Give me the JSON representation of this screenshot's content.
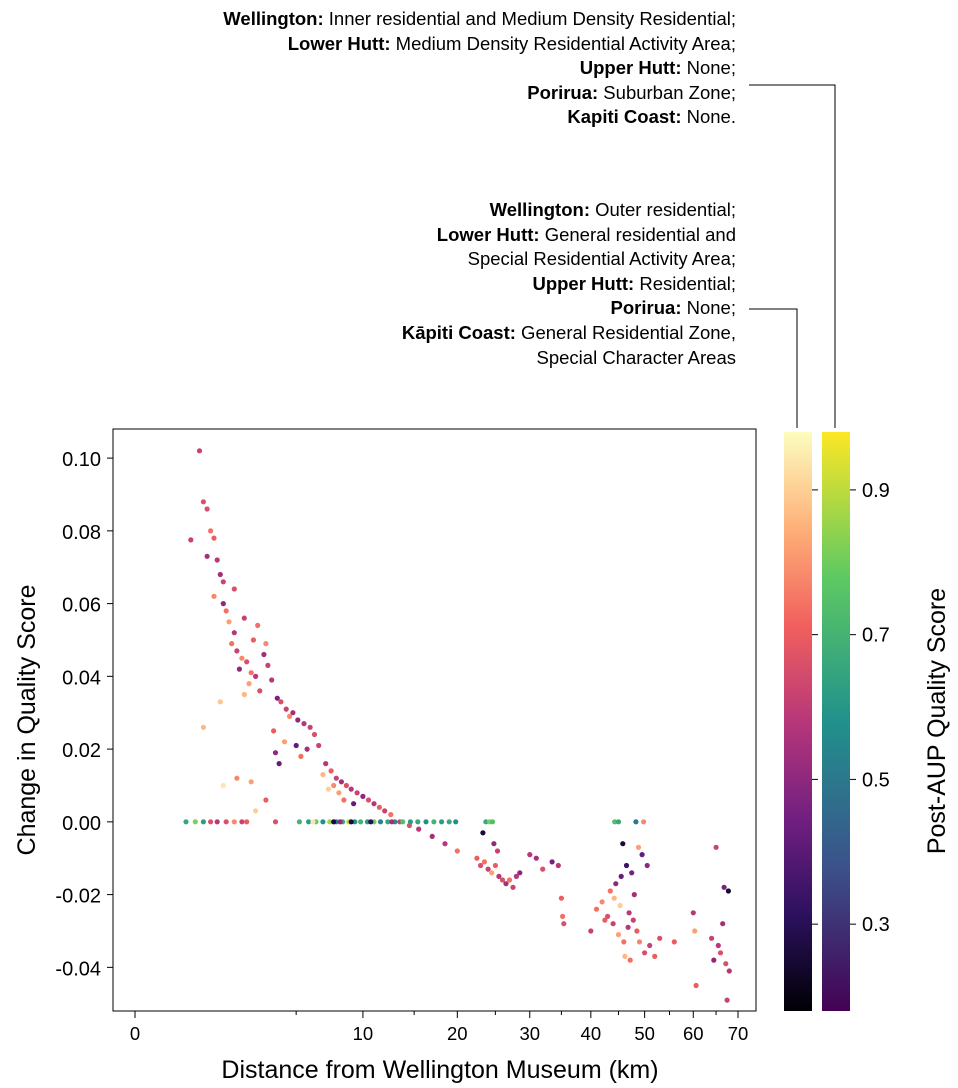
{
  "annotations": [
    {
      "lines": [
        {
          "bold": "Wellington:",
          "text": " Inner residential and Medium Density Residential;"
        },
        {
          "bold": "Lower Hutt:",
          "text": " Medium Density Residential Activity Area;"
        },
        {
          "bold": "Upper Hutt:",
          "text": " None;"
        },
        {
          "bold": "Porirua:",
          "text": " Suburban Zone;"
        },
        {
          "bold": "Kapiti Coast:",
          "text": " None."
        }
      ]
    },
    {
      "lines": [
        {
          "bold": "Wellington:",
          "text": " Outer residential;"
        },
        {
          "bold": "Lower Hutt:",
          "text": " General residential and"
        },
        {
          "bold": "",
          "text": "Special Residential Activity Area;"
        },
        {
          "bold": "Upper Hutt:",
          "text": " Residential;"
        },
        {
          "bold": "Porirua:",
          "text": " None;"
        },
        {
          "bold": "Kāpiti Coast:",
          "text": " General Residential Zone,"
        },
        {
          "bold": "",
          "text": "Special Character Areas"
        }
      ]
    }
  ],
  "chart_data": {
    "type": "scatter",
    "xlabel": "Distance from Wellington Museum (km)",
    "ylabel": "Change in Quality Score",
    "colorbar_label": "Post-AUP Quality Score",
    "x_scale": "sqrt",
    "xlim": [
      0,
      70
    ],
    "ylim": [
      -0.052,
      0.108
    ],
    "x_ticks": [
      0,
      10,
      20,
      30,
      40,
      50,
      60,
      70
    ],
    "x_minor_ticks": [
      5,
      15,
      25,
      35,
      45,
      55,
      65
    ],
    "y_ticks": [
      0.1,
      0.08,
      0.06,
      0.04,
      0.02,
      0.0,
      -0.02,
      -0.04
    ],
    "y_tick_labels": [
      "0.10",
      "0.08",
      "0.06",
      "0.04",
      "0.02",
      "0.00",
      "-0.02",
      "-0.04"
    ],
    "colorbar_range": [
      0.18,
      0.98
    ],
    "colorbar_ticks": [
      0.3,
      0.5,
      0.7,
      0.9
    ],
    "colormaps": [
      {
        "name": "magma",
        "stops": [
          "#000004",
          "#2c115f",
          "#721f81",
          "#b73779",
          "#f1605d",
          "#feb078",
          "#fcfdbf"
        ]
      },
      {
        "name": "viridis",
        "stops": [
          "#440154",
          "#3b528b",
          "#21918c",
          "#5ec962",
          "#fde725"
        ]
      }
    ],
    "points": [
      [
        0.6,
        0.0775,
        0.55,
        "magma"
      ],
      [
        0.8,
        0.102,
        0.55,
        "magma"
      ],
      [
        0.9,
        0.088,
        0.6,
        "magma"
      ],
      [
        1.0,
        0.086,
        0.6,
        "magma"
      ],
      [
        1.1,
        0.08,
        0.7,
        "magma"
      ],
      [
        1.2,
        0.078,
        0.65,
        "magma"
      ],
      [
        1.0,
        0.073,
        0.45,
        "magma"
      ],
      [
        1.3,
        0.072,
        0.5,
        "magma"
      ],
      [
        1.4,
        0.068,
        0.45,
        "magma"
      ],
      [
        1.5,
        0.066,
        0.55,
        "magma"
      ],
      [
        1.2,
        0.062,
        0.75,
        "magma"
      ],
      [
        1.6,
        0.058,
        0.7,
        "magma"
      ],
      [
        1.7,
        0.055,
        0.8,
        "magma"
      ],
      [
        1.9,
        0.052,
        0.5,
        "magma"
      ],
      [
        1.8,
        0.049,
        0.7,
        "magma"
      ],
      [
        2.0,
        0.047,
        0.55,
        "magma"
      ],
      [
        2.2,
        0.045,
        0.75,
        "magma"
      ],
      [
        2.4,
        0.044,
        0.6,
        "magma"
      ],
      [
        2.1,
        0.042,
        0.4,
        "magma"
      ],
      [
        2.6,
        0.041,
        0.7,
        "magma"
      ],
      [
        2.8,
        0.04,
        0.5,
        "magma"
      ],
      [
        2.5,
        0.038,
        0.8,
        "magma"
      ],
      [
        3.0,
        0.036,
        0.6,
        "magma"
      ],
      [
        2.3,
        0.035,
        0.85,
        "magma"
      ],
      [
        2.7,
        0.05,
        0.65,
        "magma"
      ],
      [
        3.2,
        0.046,
        0.45,
        "magma"
      ],
      [
        3.4,
        0.043,
        0.55,
        "magma"
      ],
      [
        1.5,
        0.06,
        0.4,
        "magma"
      ],
      [
        1.9,
        0.064,
        0.6,
        "magma"
      ],
      [
        2.3,
        0.056,
        0.55,
        "magma"
      ],
      [
        2.9,
        0.054,
        0.7,
        "magma"
      ],
      [
        3.3,
        0.049,
        0.75,
        "magma"
      ],
      [
        3.6,
        0.039,
        0.5,
        "magma"
      ],
      [
        3.9,
        0.034,
        0.35,
        "magma"
      ],
      [
        4.1,
        0.033,
        0.6,
        "magma"
      ],
      [
        4.4,
        0.031,
        0.55,
        "magma"
      ],
      [
        4.8,
        0.03,
        0.45,
        "magma"
      ],
      [
        5.1,
        0.028,
        0.4,
        "magma"
      ],
      [
        5.5,
        0.027,
        0.5,
        "magma"
      ],
      [
        5.9,
        0.026,
        0.55,
        "magma"
      ],
      [
        6.2,
        0.024,
        0.6,
        "magma"
      ],
      [
        4.6,
        0.029,
        0.75,
        "magma"
      ],
      [
        3.7,
        0.025,
        0.65,
        "magma"
      ],
      [
        4.3,
        0.022,
        0.8,
        "magma"
      ],
      [
        3.8,
        0.019,
        0.4,
        "magma"
      ],
      [
        4.0,
        0.016,
        0.3,
        "magma"
      ],
      [
        5.0,
        0.021,
        0.3,
        "magma"
      ],
      [
        5.3,
        0.018,
        0.7,
        "magma"
      ],
      [
        5.7,
        0.02,
        0.45,
        "magma"
      ],
      [
        6.5,
        0.021,
        0.55,
        "magma"
      ],
      [
        2.0,
        0.012,
        0.75,
        "magma"
      ],
      [
        2.6,
        0.011,
        0.8,
        "magma"
      ],
      [
        1.5,
        0.01,
        0.95,
        "magma"
      ],
      [
        3.3,
        0.006,
        0.65,
        "magma"
      ],
      [
        2.8,
        0.003,
        0.9,
        "magma"
      ],
      [
        1.4,
        0.033,
        0.88,
        "magma"
      ],
      [
        0.9,
        0.026,
        0.85,
        "magma"
      ],
      [
        7.0,
        0.016,
        0.5,
        "magma"
      ],
      [
        7.4,
        0.014,
        0.65,
        "magma"
      ],
      [
        7.8,
        0.012,
        0.55,
        "magma"
      ],
      [
        8.2,
        0.011,
        0.45,
        "magma"
      ],
      [
        8.6,
        0.01,
        0.6,
        "magma"
      ],
      [
        9.0,
        0.009,
        0.5,
        "magma"
      ],
      [
        9.5,
        0.008,
        0.55,
        "magma"
      ],
      [
        10.0,
        0.007,
        0.4,
        "magma"
      ],
      [
        10.5,
        0.006,
        0.6,
        "magma"
      ],
      [
        11.0,
        0.005,
        0.5,
        "magma"
      ],
      [
        11.5,
        0.004,
        0.65,
        "magma"
      ],
      [
        12.0,
        0.003,
        0.55,
        "magma"
      ],
      [
        12.6,
        0.002,
        0.7,
        "magma"
      ],
      [
        7.6,
        0.01,
        0.75,
        "magma"
      ],
      [
        8.0,
        0.008,
        0.8,
        "magma"
      ],
      [
        8.4,
        0.006,
        0.7,
        "magma"
      ],
      [
        9.2,
        0.005,
        0.3,
        "magma"
      ],
      [
        6.8,
        0.013,
        0.85,
        "magma"
      ],
      [
        7.2,
        0.009,
        0.9,
        "magma"
      ],
      [
        13.5,
        0.0,
        0.55,
        "magma"
      ],
      [
        14.5,
        -0.001,
        0.6,
        "magma"
      ],
      [
        15.5,
        -0.002,
        0.5,
        "magma"
      ],
      [
        17.0,
        -0.004,
        0.45,
        "magma"
      ],
      [
        18.5,
        -0.006,
        0.5,
        "magma"
      ],
      [
        20.0,
        -0.008,
        0.7,
        "magma"
      ],
      [
        22.5,
        -0.01,
        0.65,
        "magma"
      ],
      [
        23.0,
        -0.012,
        0.6,
        "magma"
      ],
      [
        23.5,
        -0.011,
        0.7,
        "magma"
      ],
      [
        24.0,
        -0.013,
        0.55,
        "magma"
      ],
      [
        24.5,
        -0.014,
        0.8,
        "magma"
      ],
      [
        25.0,
        -0.012,
        0.65,
        "magma"
      ],
      [
        25.5,
        -0.015,
        0.5,
        "magma"
      ],
      [
        26.0,
        -0.016,
        0.6,
        "magma"
      ],
      [
        26.5,
        -0.017,
        0.45,
        "magma"
      ],
      [
        27.0,
        -0.016,
        0.7,
        "magma"
      ],
      [
        27.5,
        -0.018,
        0.55,
        "magma"
      ],
      [
        28.0,
        -0.015,
        0.5,
        "magma"
      ],
      [
        28.5,
        -0.014,
        0.4,
        "magma"
      ],
      [
        23.3,
        -0.003,
        0.1,
        "magma"
      ],
      [
        24.8,
        -0.006,
        0.4,
        "magma"
      ],
      [
        25.3,
        -0.008,
        0.55,
        "magma"
      ],
      [
        30.0,
        -0.009,
        0.5,
        "magma"
      ],
      [
        31.0,
        -0.01,
        0.45,
        "magma"
      ],
      [
        32.0,
        -0.013,
        0.6,
        "magma"
      ],
      [
        33.5,
        -0.011,
        0.35,
        "magma"
      ],
      [
        34.5,
        -0.012,
        0.5,
        "magma"
      ],
      [
        35.0,
        -0.021,
        0.65,
        "magma"
      ],
      [
        35.2,
        -0.026,
        0.7,
        "magma"
      ],
      [
        35.4,
        -0.028,
        0.6,
        "magma"
      ],
      [
        40.0,
        -0.03,
        0.55,
        "magma"
      ],
      [
        41.0,
        -0.024,
        0.7,
        "magma"
      ],
      [
        42.0,
        -0.022,
        0.75,
        "magma"
      ],
      [
        43.0,
        -0.026,
        0.6,
        "magma"
      ],
      [
        44.0,
        -0.028,
        0.55,
        "magma"
      ],
      [
        45.0,
        -0.031,
        0.8,
        "magma"
      ],
      [
        46.0,
        -0.033,
        0.7,
        "magma"
      ],
      [
        47.0,
        -0.025,
        0.5,
        "magma"
      ],
      [
        44.5,
        -0.017,
        0.4,
        "magma"
      ],
      [
        45.5,
        -0.015,
        0.3,
        "magma"
      ],
      [
        46.5,
        -0.012,
        0.2,
        "magma"
      ],
      [
        47.5,
        -0.014,
        0.35,
        "magma"
      ],
      [
        45.8,
        -0.006,
        0.1,
        "magma"
      ],
      [
        48.0,
        -0.02,
        0.45,
        "magma"
      ],
      [
        48.5,
        -0.03,
        0.65,
        "magma"
      ],
      [
        49.0,
        -0.033,
        0.75,
        "magma"
      ],
      [
        50.0,
        -0.036,
        0.6,
        "magma"
      ],
      [
        51.0,
        -0.034,
        0.55,
        "magma"
      ],
      [
        52.0,
        -0.037,
        0.65,
        "magma"
      ],
      [
        49.5,
        -0.009,
        0.3,
        "magma"
      ],
      [
        50.5,
        -0.012,
        0.4,
        "magma"
      ],
      [
        48.8,
        -0.007,
        0.8,
        "magma"
      ],
      [
        46.2,
        -0.037,
        0.85,
        "magma"
      ],
      [
        47.2,
        -0.038,
        0.7,
        "magma"
      ],
      [
        53.0,
        -0.032,
        0.6,
        "magma"
      ],
      [
        44.2,
        -0.021,
        0.85,
        "magma"
      ],
      [
        45.3,
        -0.023,
        0.9,
        "magma"
      ],
      [
        43.5,
        -0.019,
        0.7,
        "magma"
      ],
      [
        42.5,
        -0.027,
        0.65,
        "magma"
      ],
      [
        46.8,
        -0.029,
        0.5,
        "magma"
      ],
      [
        47.8,
        -0.027,
        0.55,
        "magma"
      ],
      [
        56.0,
        -0.033,
        0.65,
        "magma"
      ],
      [
        60.0,
        -0.025,
        0.5,
        "magma"
      ],
      [
        60.3,
        -0.03,
        0.8,
        "magma"
      ],
      [
        60.6,
        -0.045,
        0.65,
        "magma"
      ],
      [
        64.0,
        -0.032,
        0.55,
        "magma"
      ],
      [
        65.0,
        -0.007,
        0.55,
        "magma"
      ],
      [
        65.5,
        -0.034,
        0.5,
        "magma"
      ],
      [
        66.0,
        -0.036,
        0.6,
        "magma"
      ],
      [
        66.5,
        -0.028,
        0.45,
        "magma"
      ],
      [
        66.8,
        -0.018,
        0.35,
        "magma"
      ],
      [
        67.2,
        -0.039,
        0.6,
        "magma"
      ],
      [
        67.5,
        -0.049,
        0.55,
        "magma"
      ],
      [
        67.8,
        -0.019,
        0.1,
        "magma"
      ],
      [
        68.0,
        -0.041,
        0.5,
        "magma"
      ],
      [
        64.5,
        -0.038,
        0.4,
        "magma"
      ],
      [
        0.5,
        0.0,
        0.6,
        "viridis"
      ],
      [
        0.7,
        0.0,
        0.8,
        "viridis"
      ],
      [
        0.9,
        0.0,
        0.55,
        "viridis"
      ],
      [
        1.1,
        0.0,
        0.6,
        "magma"
      ],
      [
        1.3,
        0.0,
        0.5,
        "magma"
      ],
      [
        1.6,
        0.0,
        0.6,
        "magma"
      ],
      [
        1.9,
        0.0,
        0.75,
        "magma"
      ],
      [
        2.2,
        0.0,
        0.55,
        "magma"
      ],
      [
        2.4,
        0.0,
        0.65,
        "magma"
      ],
      [
        3.8,
        0.0,
        0.6,
        "magma"
      ],
      [
        5.2,
        0.0,
        0.65,
        "viridis"
      ],
      [
        5.8,
        0.0,
        0.55,
        "viridis"
      ],
      [
        6.3,
        0.0,
        0.75,
        "viridis"
      ],
      [
        6.8,
        0.0,
        0.5,
        "viridis"
      ],
      [
        7.3,
        0.0,
        0.85,
        "viridis"
      ],
      [
        7.8,
        0.0,
        0.45,
        "viridis"
      ],
      [
        8.3,
        0.0,
        0.6,
        "viridis"
      ],
      [
        8.8,
        0.0,
        0.9,
        "viridis"
      ],
      [
        9.3,
        0.0,
        0.5,
        "viridis"
      ],
      [
        9.8,
        0.0,
        0.65,
        "viridis"
      ],
      [
        10.4,
        0.0,
        0.55,
        "viridis"
      ],
      [
        11.0,
        0.0,
        0.8,
        "viridis"
      ],
      [
        11.6,
        0.0,
        0.45,
        "viridis"
      ],
      [
        12.3,
        0.0,
        0.6,
        "viridis"
      ],
      [
        13.0,
        0.0,
        0.5,
        "viridis"
      ],
      [
        13.8,
        0.0,
        0.7,
        "viridis"
      ],
      [
        14.6,
        0.0,
        0.55,
        "viridis"
      ],
      [
        15.4,
        0.0,
        0.6,
        "viridis"
      ],
      [
        16.3,
        0.0,
        0.5,
        "viridis"
      ],
      [
        17.2,
        0.0,
        0.65,
        "viridis"
      ],
      [
        18.1,
        0.0,
        0.55,
        "viridis"
      ],
      [
        19.0,
        0.0,
        0.6,
        "viridis"
      ],
      [
        19.8,
        0.0,
        0.5,
        "viridis"
      ],
      [
        6.1,
        0.0,
        0.95,
        "magma"
      ],
      [
        7.6,
        0.0,
        0.1,
        "magma"
      ],
      [
        9.0,
        0.0,
        0.1,
        "magma"
      ],
      [
        8.1,
        0.0,
        0.4,
        "magma"
      ],
      [
        10.7,
        0.0,
        0.15,
        "magma"
      ],
      [
        12.7,
        0.0,
        0.45,
        "magma"
      ],
      [
        23.7,
        0.0,
        0.6,
        "viridis"
      ],
      [
        24.2,
        0.0,
        0.8,
        "viridis"
      ],
      [
        24.6,
        0.0,
        0.7,
        "viridis"
      ],
      [
        44.3,
        0.0,
        0.7,
        "viridis"
      ],
      [
        45.0,
        0.0,
        0.6,
        "viridis"
      ],
      [
        48.3,
        0.0,
        0.4,
        "viridis"
      ],
      [
        49.8,
        0.0,
        0.75,
        "magma"
      ]
    ]
  }
}
